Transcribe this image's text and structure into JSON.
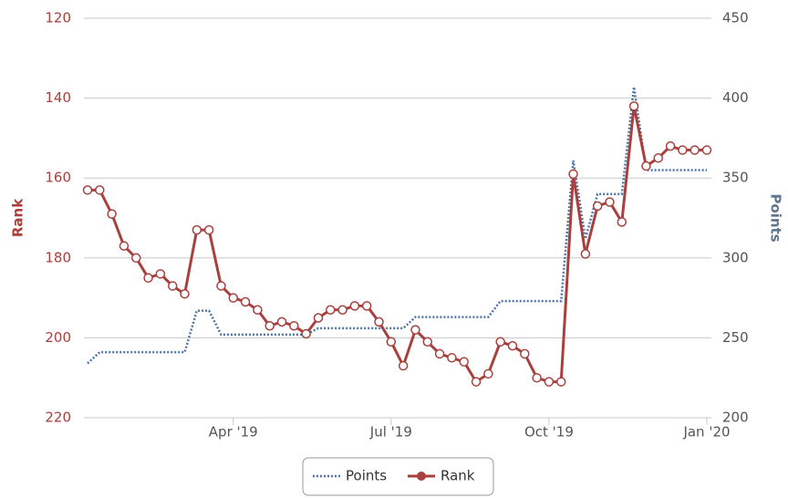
{
  "chart_data": {
    "type": "line",
    "categories": [
      null,
      null,
      null,
      null,
      null,
      null,
      null,
      null,
      null,
      null,
      null,
      null,
      "Apr '19",
      null,
      null,
      null,
      null,
      null,
      null,
      null,
      null,
      null,
      null,
      null,
      null,
      "Jul '19",
      null,
      null,
      null,
      null,
      null,
      null,
      null,
      null,
      null,
      null,
      null,
      null,
      "Oct '19",
      null,
      null,
      null,
      null,
      null,
      null,
      null,
      null,
      null,
      null,
      null,
      null,
      "Jan '20"
    ],
    "ylabel": "Rank",
    "y2label": "Points",
    "ylim": [
      120,
      220
    ],
    "yticks": [
      120,
      140,
      160,
      180,
      200,
      220
    ],
    "yreversed": true,
    "y2lim": [
      200,
      450
    ],
    "y2ticks": [
      200,
      250,
      300,
      350,
      400,
      450
    ],
    "grid": true,
    "legend": "bottom",
    "series": [
      {
        "name": "Points",
        "color": "#4f74a6",
        "axis": "y2",
        "dotted": true,
        "values": [
          234,
          241,
          241,
          241,
          241,
          241,
          241,
          241,
          241,
          267,
          267,
          252,
          252,
          252,
          252,
          252,
          252,
          252,
          252,
          256,
          256,
          256,
          256,
          256,
          256,
          256,
          256,
          263,
          263,
          263,
          263,
          263,
          263,
          263,
          273,
          273,
          273,
          273,
          273,
          273,
          361,
          312,
          340,
          340,
          340,
          407,
          355,
          355,
          355,
          355,
          355,
          355
        ]
      },
      {
        "name": "Rank",
        "color": "#a8403e",
        "axis": "y",
        "markers": true,
        "values": [
          163,
          163,
          169,
          177,
          180,
          185,
          184,
          187,
          189,
          173,
          173,
          187,
          190,
          191,
          193,
          197,
          196,
          197,
          199,
          195,
          193,
          193,
          192,
          192,
          196,
          201,
          207,
          198,
          201,
          204,
          205,
          206,
          211,
          209,
          201,
          202,
          204,
          210,
          211,
          211,
          159,
          179,
          167,
          166,
          171,
          142,
          157,
          155,
          152,
          153,
          153,
          153
        ]
      }
    ]
  }
}
